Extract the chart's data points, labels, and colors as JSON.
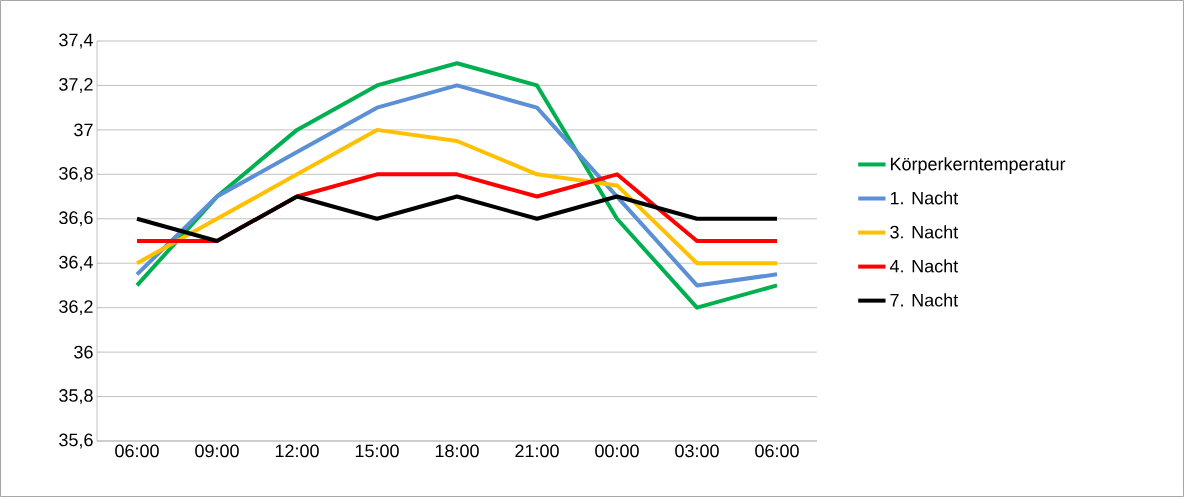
{
  "chart_data": {
    "type": "line",
    "categories": [
      "06:00",
      "09:00",
      "12:00",
      "15:00",
      "18:00",
      "21:00",
      "00:00",
      "03:00",
      "06:00"
    ],
    "series": [
      {
        "name": "Körperkerntemperatur",
        "color": "#00b050",
        "values": [
          36.3,
          36.7,
          37.0,
          37.2,
          37.3,
          37.2,
          36.6,
          36.2,
          36.3
        ]
      },
      {
        "name": "1. Nacht",
        "color": "#5b8fd6",
        "values": [
          36.35,
          36.7,
          36.9,
          37.1,
          37.2,
          37.1,
          36.7,
          36.3,
          36.35
        ]
      },
      {
        "name": "3. Nacht",
        "color": "#ffc000",
        "values": [
          36.4,
          36.6,
          36.8,
          37.0,
          36.95,
          36.8,
          36.75,
          36.4,
          36.4
        ]
      },
      {
        "name": "4. Nacht",
        "color": "#ff0000",
        "values": [
          36.5,
          36.5,
          36.7,
          36.8,
          36.8,
          36.7,
          36.8,
          36.5,
          36.5
        ]
      },
      {
        "name": "7. Nacht",
        "color": "#000000",
        "values": [
          36.6,
          36.5,
          36.7,
          36.6,
          36.7,
          36.6,
          36.7,
          36.6,
          36.6
        ]
      }
    ],
    "ylim": [
      35.6,
      37.4
    ],
    "yticks": [
      {
        "value": 35.6,
        "label": "35,6"
      },
      {
        "value": 35.8,
        "label": "35,8"
      },
      36,
      {
        "value": 36.2,
        "label": "36,2"
      },
      {
        "value": 36.4,
        "label": "36,4"
      },
      {
        "value": 36.6,
        "label": "36,6"
      },
      {
        "value": 36.8,
        "label": "36,8"
      },
      37,
      {
        "value": 37.2,
        "label": "37,2"
      },
      {
        "value": 37.4,
        "label": "37,4"
      }
    ],
    "grid": "y",
    "legend": "right",
    "marker": "none",
    "line_style": "solid"
  }
}
